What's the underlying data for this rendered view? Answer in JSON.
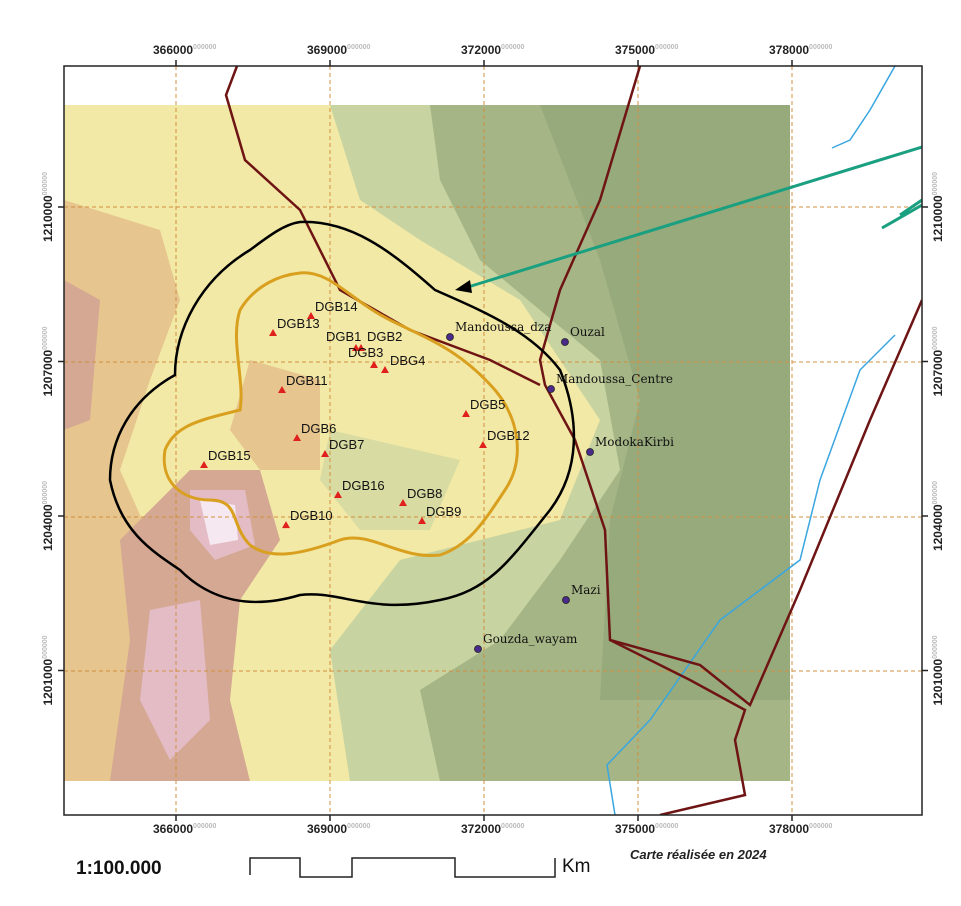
{
  "map": {
    "x_ticks": [
      "366000",
      "369000",
      "372000",
      "375000",
      "378000"
    ],
    "y_ticks": [
      "1210000",
      "1207000",
      "1204000",
      "1201000"
    ],
    "tick_suffix": "000000",
    "drill_points": [
      {
        "label": "DGB14",
        "e": 368630,
        "n": 1207883
      },
      {
        "label": "DGB13",
        "e": 367890,
        "n": 1207553
      },
      {
        "label": "DGB1",
        "e": 369506,
        "n": 1207262
      },
      {
        "label": "DGB2",
        "e": 369604,
        "n": 1207262
      },
      {
        "label": "DGB3",
        "e": 369857,
        "n": 1206932
      },
      {
        "label": "DBG4",
        "e": 370071,
        "n": 1206835
      },
      {
        "label": "DGB11",
        "e": 368065,
        "n": 1206446
      },
      {
        "label": "DGB6",
        "e": 368357,
        "n": 1205514
      },
      {
        "label": "DGB7",
        "e": 368903,
        "n": 1205204
      },
      {
        "label": "DGB15",
        "e": 366545,
        "n": 1204990
      },
      {
        "label": "DGB16",
        "e": 369156,
        "n": 1204407
      },
      {
        "label": "DGB8",
        "e": 370422,
        "n": 1204252
      },
      {
        "label": "DGB9",
        "e": 370792,
        "n": 1203902
      },
      {
        "label": "DGB10",
        "e": 368143,
        "n": 1203824
      },
      {
        "label": "DGB5",
        "e": 371649,
        "n": 1205980
      },
      {
        "label": "DGB12",
        "e": 371980,
        "n": 1205378
      }
    ],
    "villages": [
      {
        "label": "Mandoussa_dza",
        "e": 371337,
        "n": 1207475
      },
      {
        "label": "Ouzal",
        "e": 373577,
        "n": 1207378
      },
      {
        "label": "Mandoussa_Centre",
        "e": 373305,
        "n": 1206466
      },
      {
        "label": "ModokaKirbi",
        "e": 374065,
        "n": 1205242
      },
      {
        "label": "Mazi",
        "e": 373597,
        "n": 1202368
      },
      {
        "label": "Gouzda_wayam",
        "e": 371883,
        "n": 1201417
      }
    ],
    "colors": {
      "drill_point": "#e0201c",
      "village": "#4a2a8a",
      "road": "#6e1414",
      "river": "#3aa6e0",
      "buffer_outer": "#000000",
      "buffer_inner": "#d9a020",
      "arrow": "#1aa080"
    }
  },
  "footer": {
    "scale": "1:100.000",
    "scale_unit": "Km",
    "credit": "Carte réalisée en 2024"
  }
}
